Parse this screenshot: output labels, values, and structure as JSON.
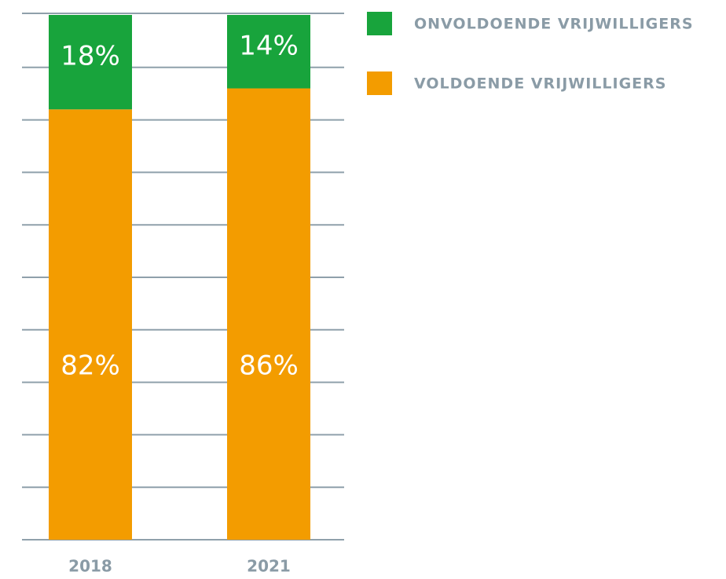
{
  "chart_data": {
    "type": "stacked_bar",
    "categories": [
      "2018",
      "2021"
    ],
    "series": [
      {
        "name": "ONVOLDOENDE VRIJWILLIGERS",
        "color": "#18a43c",
        "values": [
          18,
          14
        ],
        "value_labels": [
          "18%",
          "14%"
        ]
      },
      {
        "name": "VOLDOENDE VRIJWILLIGERS",
        "color": "#f39c00",
        "values": [
          82,
          86
        ],
        "value_labels": [
          "82%",
          "86%"
        ]
      }
    ],
    "ylim": [
      0,
      100
    ],
    "yticks": [
      0,
      10,
      20,
      30,
      40,
      50,
      60,
      70,
      80,
      90,
      100
    ],
    "grid": true
  }
}
